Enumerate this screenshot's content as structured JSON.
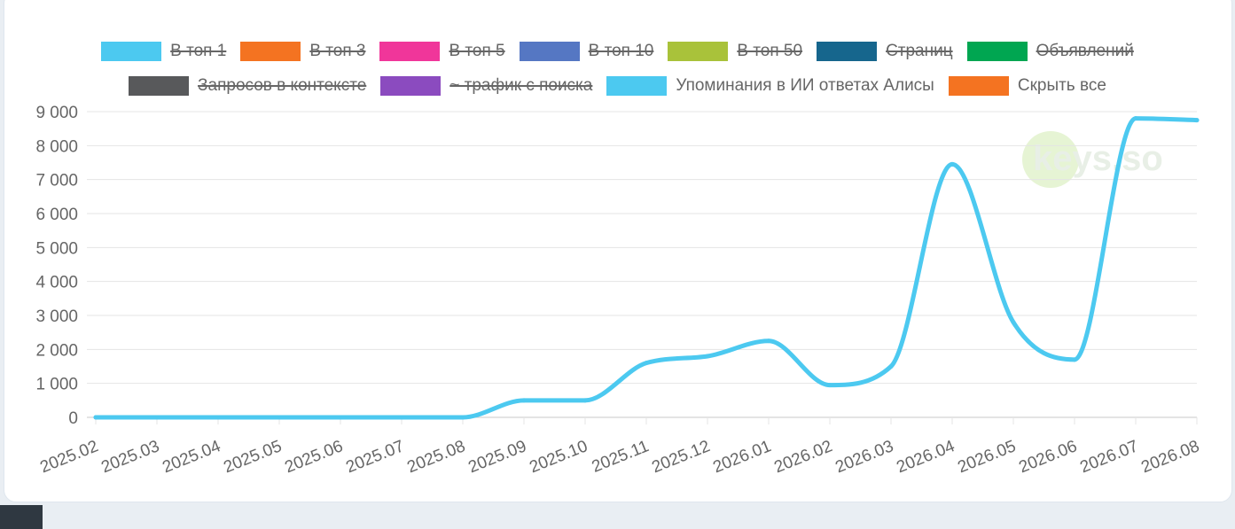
{
  "legend": {
    "row1": [
      {
        "label": "В топ 1",
        "color": "#4cc9f0",
        "hidden": true
      },
      {
        "label": "В топ 3",
        "color": "#f47321",
        "hidden": true
      },
      {
        "label": "В топ 5",
        "color": "#f0369a",
        "hidden": true
      },
      {
        "label": "В топ 10",
        "color": "#5577c3",
        "hidden": true
      },
      {
        "label": "В топ 50",
        "color": "#a9c23a",
        "hidden": true
      },
      {
        "label": "Страниц",
        "color": "#16668d",
        "hidden": true
      },
      {
        "label": "Объявлений",
        "color": "#00a651",
        "hidden": true
      }
    ],
    "row2": [
      {
        "label": "Запросов в контексте",
        "color": "#58595b",
        "hidden": true
      },
      {
        "label": "~ трафик с поиска",
        "color": "#8b4bbf",
        "hidden": true
      },
      {
        "label": "Упоминания в ИИ ответах Алисы",
        "color": "#4cc9f0",
        "hidden": false
      },
      {
        "label": "Скрыть все",
        "color": "#f47321",
        "hidden": false
      }
    ]
  },
  "watermark": "keys.so",
  "chart_data": {
    "type": "line",
    "categories": [
      "2025.02",
      "2025.03",
      "2025.04",
      "2025.05",
      "2025.06",
      "2025.07",
      "2025.08",
      "2025.09",
      "2025.10",
      "2025.11",
      "2025.12",
      "2026.01",
      "2026.02",
      "2026.03",
      "2026.04",
      "2026.05",
      "2026.06",
      "2026.07",
      "2026.08"
    ],
    "series": [
      {
        "name": "Упоминания в ИИ ответах Алисы",
        "color": "#4cc9f0",
        "values": [
          0,
          0,
          0,
          0,
          0,
          0,
          0,
          500,
          500,
          1600,
          1800,
          2250,
          950,
          1500,
          7450,
          2800,
          1700,
          8800,
          8750
        ]
      }
    ],
    "y_ticks": [
      "9 000",
      "8 000",
      "7 000",
      "6 000",
      "5 000",
      "4 000",
      "3 000",
      "2 000",
      "1 000",
      "0"
    ],
    "ylim": [
      0,
      9000
    ],
    "grid": true,
    "legend_position": "top"
  }
}
